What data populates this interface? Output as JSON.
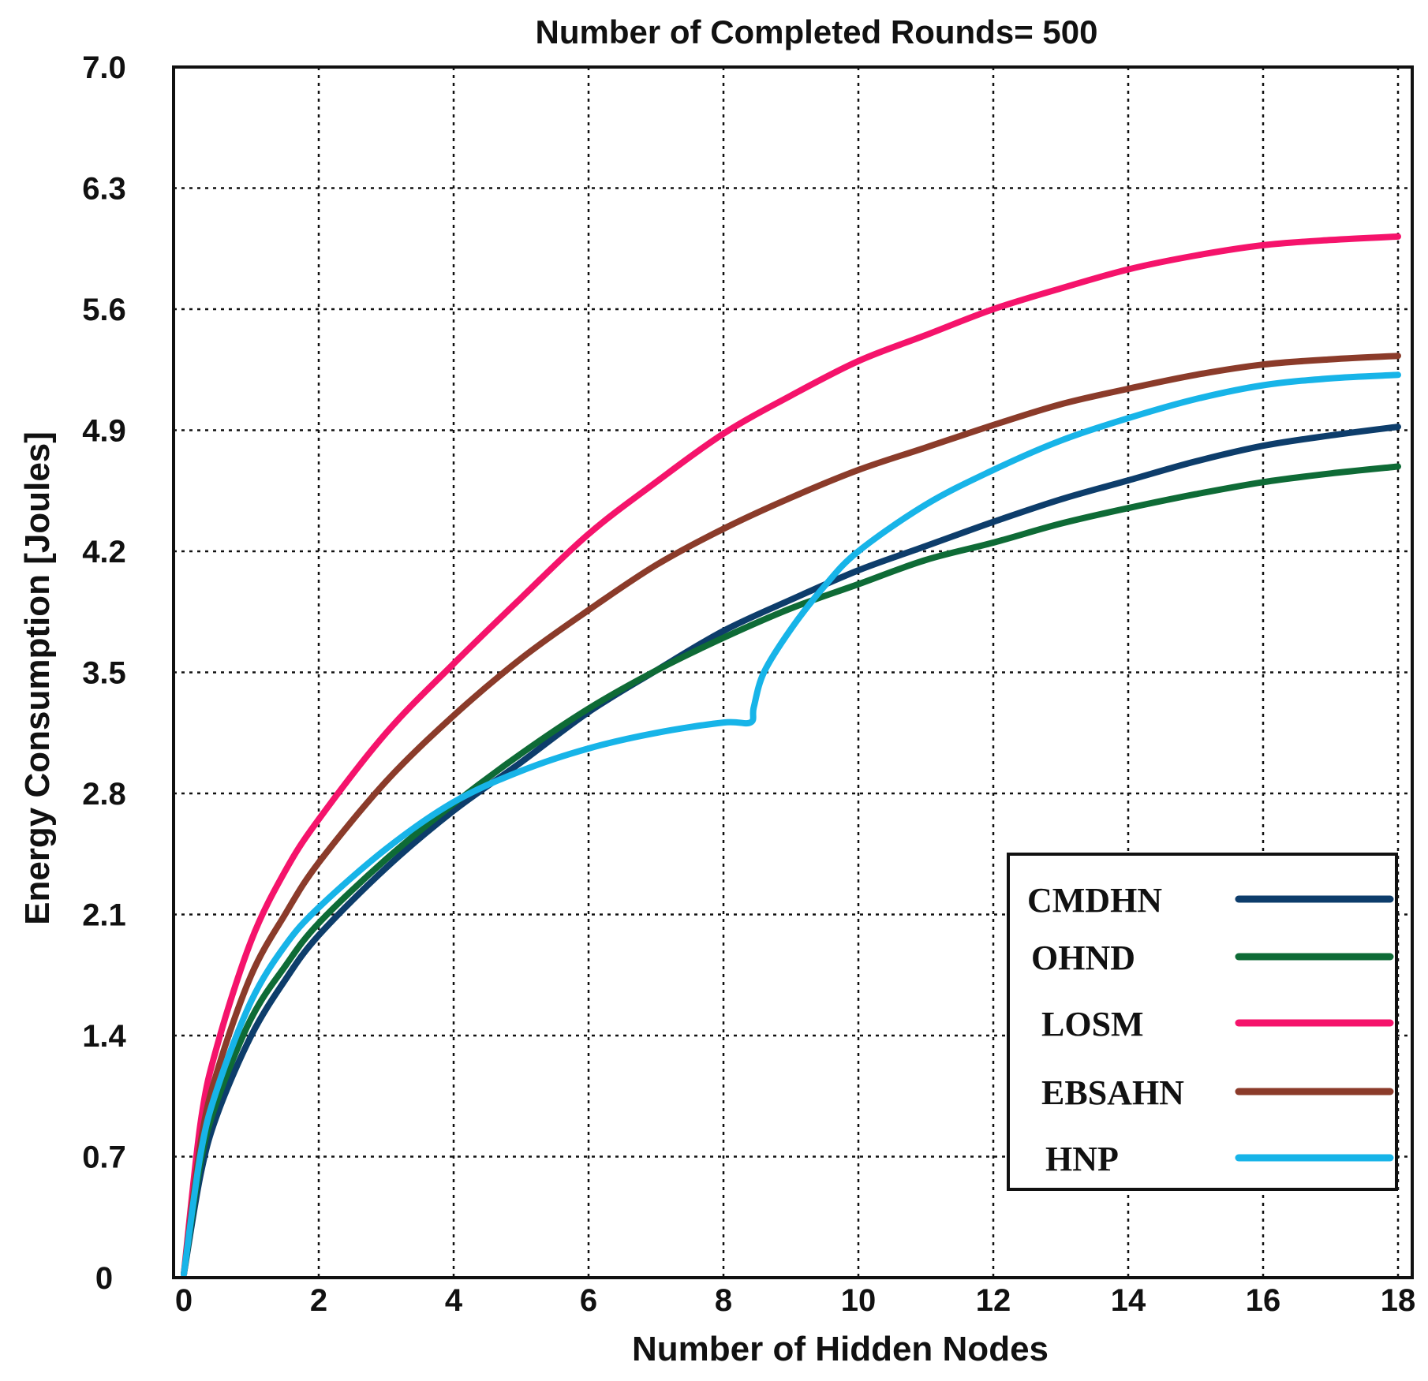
{
  "chart_data": {
    "type": "line",
    "title": "Number of Completed Rounds= 500",
    "xlabel": "Number of Hidden Nodes",
    "ylabel": "Energy Consumption [Joules]",
    "xlim": [
      0,
      18
    ],
    "ylim": [
      0,
      7.0
    ],
    "xticks": [
      0,
      2,
      4,
      6,
      8,
      10,
      12,
      14,
      16,
      18
    ],
    "yticks": [
      0,
      0.7,
      1.4,
      2.1,
      2.8,
      3.5,
      4.2,
      4.9,
      5.6,
      6.3,
      7.0
    ],
    "ytick_labels": [
      "0",
      "0.7",
      "1.4",
      "2.1",
      "2.8",
      "3.5",
      "4.2",
      "4.9",
      "5.6",
      "6.3",
      "7.0"
    ],
    "xtick_labels": [
      "0",
      "2",
      "4",
      "6",
      "8",
      "10",
      "12",
      "14",
      "16",
      "18"
    ],
    "grid": true,
    "legend_position": "bottom-right",
    "series": [
      {
        "name": "CMDHN",
        "color": "#0d3d6b",
        "x": [
          0,
          0.25,
          0.5,
          1,
          1.5,
          2,
          3,
          4,
          5,
          6,
          7,
          8,
          9,
          10,
          11,
          12,
          13,
          14,
          15,
          16,
          17,
          18
        ],
        "y": [
          0.02,
          0.6,
          0.95,
          1.4,
          1.72,
          1.98,
          2.37,
          2.7,
          2.98,
          3.27,
          3.51,
          3.74,
          3.92,
          4.09,
          4.23,
          4.37,
          4.5,
          4.61,
          4.72,
          4.81,
          4.87,
          4.92
        ]
      },
      {
        "name": "OHND",
        "color": "#0e6b36",
        "x": [
          0,
          0.25,
          0.5,
          1,
          1.5,
          2,
          3,
          4,
          5,
          6,
          7,
          8,
          9,
          10,
          11,
          12,
          13,
          14,
          15,
          16,
          17,
          18
        ],
        "y": [
          0.02,
          0.67,
          1.03,
          1.5,
          1.8,
          2.05,
          2.42,
          2.74,
          3.03,
          3.29,
          3.51,
          3.7,
          3.87,
          4.01,
          4.15,
          4.25,
          4.36,
          4.45,
          4.53,
          4.6,
          4.65,
          4.69
        ]
      },
      {
        "name": "LOSM",
        "color": "#f5136b",
        "x": [
          0,
          0.25,
          0.5,
          1,
          1.5,
          2,
          3,
          4,
          5,
          6,
          7,
          8,
          9,
          10,
          11,
          12,
          13,
          14,
          15,
          16,
          17,
          18
        ],
        "y": [
          0.02,
          0.9,
          1.35,
          1.95,
          2.35,
          2.65,
          3.15,
          3.55,
          3.93,
          4.3,
          4.6,
          4.88,
          5.1,
          5.3,
          5.45,
          5.6,
          5.72,
          5.83,
          5.91,
          5.97,
          6.0,
          6.02
        ]
      },
      {
        "name": "EBSAHN",
        "color": "#8b3b2a",
        "x": [
          0,
          0.25,
          0.5,
          1,
          1.5,
          2,
          3,
          4,
          5,
          6,
          7,
          8,
          9,
          10,
          11,
          12,
          13,
          14,
          15,
          16,
          17,
          18
        ],
        "y": [
          0.02,
          0.78,
          1.2,
          1.75,
          2.1,
          2.4,
          2.87,
          3.25,
          3.58,
          3.86,
          4.12,
          4.33,
          4.51,
          4.67,
          4.8,
          4.93,
          5.05,
          5.14,
          5.22,
          5.28,
          5.31,
          5.33
        ]
      },
      {
        "name": "HNP",
        "color": "#17b4e8",
        "x": [
          0,
          0.25,
          0.5,
          1,
          1.5,
          2,
          3,
          4,
          5,
          6,
          7,
          8,
          8.4,
          8.45,
          8.6,
          9,
          9.5,
          10,
          11,
          12,
          13,
          14,
          15,
          16,
          17,
          18
        ],
        "y": [
          0.02,
          0.72,
          1.1,
          1.6,
          1.92,
          2.14,
          2.48,
          2.75,
          2.93,
          3.06,
          3.15,
          3.21,
          3.21,
          3.3,
          3.5,
          3.75,
          4.0,
          4.2,
          4.47,
          4.67,
          4.84,
          4.97,
          5.08,
          5.16,
          5.2,
          5.22
        ]
      }
    ]
  }
}
